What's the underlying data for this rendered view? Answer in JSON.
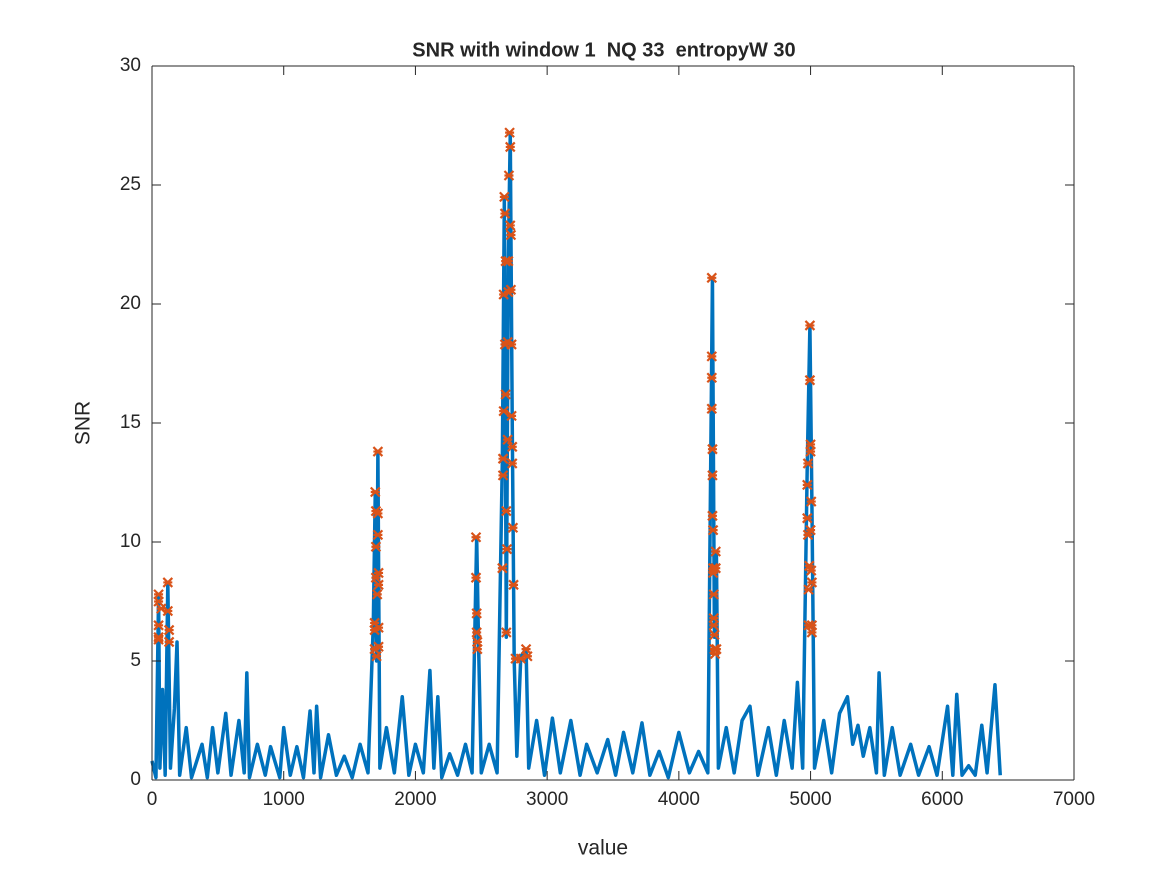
{
  "chart_data": {
    "type": "line",
    "title": "SNR with window 1  NQ 33  entropyW 30",
    "x_label": "value",
    "y_label": "SNR",
    "xlim": [
      0,
      7000
    ],
    "ylim": [
      0,
      30
    ],
    "xticks": [
      0,
      1000,
      2000,
      3000,
      4000,
      5000,
      6000,
      7000
    ],
    "yticks": [
      0,
      5,
      10,
      15,
      20,
      25,
      30
    ],
    "grid": false,
    "box": true,
    "series": [
      {
        "color": "#0072bd",
        "style": "line",
        "x": [
          0,
          30,
          50,
          60,
          80,
          100,
          120,
          140,
          170,
          190,
          210,
          260,
          300,
          380,
          420,
          460,
          500,
          560,
          600,
          660,
          700,
          720,
          740,
          800,
          860,
          900,
          970,
          1000,
          1050,
          1100,
          1150,
          1200,
          1230,
          1250,
          1280,
          1340,
          1400,
          1460,
          1520,
          1580,
          1640,
          1680,
          1695,
          1705,
          1715,
          1730,
          1780,
          1840,
          1900,
          1950,
          2000,
          2060,
          2110,
          2140,
          2170,
          2200,
          2260,
          2320,
          2380,
          2430,
          2465,
          2480,
          2500,
          2560,
          2620,
          2660,
          2675,
          2690,
          2705,
          2720,
          2735,
          2750,
          2770,
          2800,
          2840,
          2860,
          2920,
          2980,
          3040,
          3100,
          3180,
          3250,
          3300,
          3380,
          3460,
          3520,
          3580,
          3650,
          3720,
          3780,
          3850,
          3920,
          4000,
          4080,
          4150,
          4220,
          4255,
          4270,
          4285,
          4300,
          4360,
          4420,
          4480,
          4540,
          4600,
          4680,
          4740,
          4800,
          4860,
          4900,
          4940,
          4975,
          4995,
          5010,
          5030,
          5100,
          5160,
          5220,
          5280,
          5320,
          5360,
          5400,
          5450,
          5500,
          5520,
          5560,
          5620,
          5680,
          5760,
          5820,
          5900,
          5960,
          6040,
          6080,
          6110,
          6150,
          6200,
          6250,
          6300,
          6340,
          6400,
          6440
        ],
        "values": [
          0.8,
          0.1,
          7.8,
          0.5,
          3.8,
          0.2,
          8.3,
          0.5,
          3,
          5.8,
          0.2,
          2.2,
          0.1,
          1.5,
          0.1,
          2.2,
          0.3,
          2.8,
          0.2,
          2.5,
          0.3,
          4.5,
          0.1,
          1.5,
          0.2,
          1.4,
          0.1,
          2.2,
          0.2,
          1.4,
          0.1,
          2.9,
          0.3,
          3.1,
          0.1,
          1.9,
          0.2,
          1.0,
          0.1,
          1.5,
          0.3,
          6.5,
          12.1,
          5,
          13.8,
          0.5,
          2.2,
          0.3,
          3.5,
          0.2,
          1.5,
          0.3,
          4.6,
          0.5,
          3.5,
          0.1,
          1.1,
          0.2,
          1.5,
          0.3,
          10.2,
          5.5,
          0.3,
          1.5,
          0.3,
          13.5,
          24.5,
          6,
          21.8,
          27.2,
          15,
          5,
          1,
          5.2,
          5.5,
          0.5,
          2.5,
          0.2,
          2.6,
          0.3,
          2.5,
          0.2,
          1.5,
          0.3,
          1.7,
          0.2,
          2,
          0.3,
          2.4,
          0.2,
          1.2,
          0.1,
          2.0,
          0.3,
          1.2,
          0.3,
          21.1,
          6,
          9.6,
          0.5,
          2.2,
          0.3,
          2.5,
          3.1,
          0.2,
          2.2,
          0.2,
          2.5,
          0.5,
          4.1,
          0.5,
          13.3,
          19.1,
          11.7,
          0.5,
          2.5,
          0.3,
          2.8,
          3.5,
          1.5,
          2.3,
          1,
          2.2,
          0.3,
          4.5,
          0.2,
          2.2,
          0.2,
          1.5,
          0.2,
          1.4,
          0.2,
          3.1,
          0.2,
          3.6,
          0.2,
          0.6,
          0.2,
          2.3,
          0.3,
          4.0,
          0.2
        ]
      },
      {
        "color": "#d95319",
        "style": "marker",
        "x": [
          50,
          50,
          50,
          50,
          50,
          70,
          120,
          120,
          130,
          130,
          1690,
          1690,
          1690,
          1695,
          1700,
          1700,
          1700,
          1705,
          1710,
          1715,
          1715,
          1715,
          1720,
          1720,
          1720,
          1720,
          2460,
          2460,
          2465,
          2465,
          2470,
          2470,
          2660,
          2665,
          2665,
          2670,
          2670,
          2675,
          2680,
          2680,
          2685,
          2685,
          2690,
          2690,
          2695,
          2700,
          2700,
          2705,
          2705,
          2710,
          2715,
          2720,
          2720,
          2725,
          2725,
          2730,
          2730,
          2735,
          2735,
          2740,
          2745,
          2760,
          2800,
          2840,
          2850,
          4250,
          4250,
          4250,
          4250,
          4255,
          4255,
          4255,
          4260,
          4260,
          4260,
          4265,
          4265,
          4265,
          4270,
          4270,
          4275,
          4280,
          4280,
          4285,
          4975,
          4975,
          4980,
          4980,
          4985,
          4985,
          4990,
          4995,
          4995,
          5000,
          5000,
          5000,
          5005,
          5005,
          5010,
          5010,
          5010
        ],
        "values": [
          7.8,
          7.5,
          6.5,
          6.0,
          5.9,
          7.2,
          8.3,
          7.1,
          6.3,
          5.8,
          6.6,
          6.3,
          5.5,
          12.1,
          11.3,
          9.8,
          8.5,
          5.2,
          7.8,
          13.8,
          11.2,
          10.3,
          8.7,
          8.2,
          6.4,
          5.6,
          10.2,
          8.5,
          7.0,
          6.2,
          5.8,
          5.5,
          8.9,
          13.5,
          12.8,
          15.5,
          20.4,
          24.5,
          23.8,
          18.3,
          21.8,
          16.2,
          11.3,
          6.2,
          9.7,
          14.3,
          18.4,
          21.8,
          20.5,
          25.4,
          27.2,
          26.6,
          23.3,
          22.9,
          20.6,
          18.3,
          15.3,
          14.0,
          13.3,
          10.6,
          8.2,
          5.1,
          5.1,
          5.5,
          5.2,
          21.1,
          17.8,
          16.9,
          15.6,
          13.9,
          12.8,
          11.1,
          10.5,
          8.9,
          8.7,
          7.8,
          6.8,
          6.5,
          6.1,
          5.5,
          5.3,
          9.6,
          8.9,
          5.5,
          12.4,
          11.0,
          13.3,
          10.3,
          8.0,
          6.5,
          9.0,
          19.1,
          16.8,
          14.1,
          13.8,
          10.5,
          11.7,
          8.8,
          8.3,
          6.5,
          6.2
        ]
      }
    ]
  }
}
